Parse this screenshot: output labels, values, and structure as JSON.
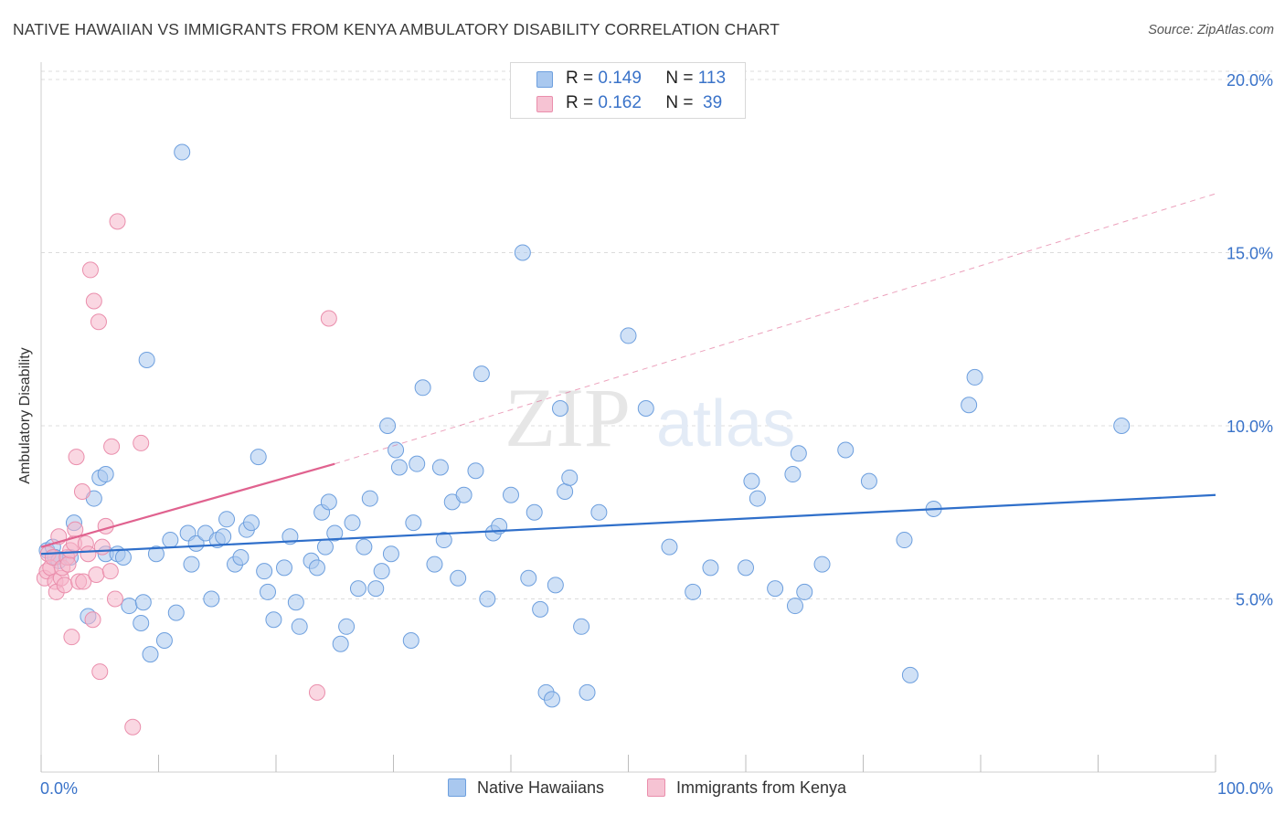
{
  "header": {
    "title": "NATIVE HAWAIIAN VS IMMIGRANTS FROM KENYA AMBULATORY DISABILITY CORRELATION CHART",
    "source": "Source: ZipAtlas.com"
  },
  "watermark": {
    "zip": "ZIP",
    "atlas": "atlas"
  },
  "legend_top": {
    "rows": [
      {
        "r_label": "R =",
        "r_value": "0.149",
        "n_label": "N =",
        "n_value": "113"
      },
      {
        "r_label": "R =",
        "r_value": "0.162",
        "n_label": "N =",
        "n_value": " 39"
      }
    ]
  },
  "legend_bottom": {
    "series1": "Native Hawaiians",
    "series2": "Immigrants from Kenya"
  },
  "colors": {
    "blue_fill": "#a9c8ef",
    "blue_stroke": "#6d9fde",
    "blue_line": "#2f6fca",
    "pink_fill": "#f6b7cb",
    "pink_stroke": "#ea8eac",
    "pink_line": "#e0628f",
    "tick_text": "#3a73c9",
    "grid": "#dcdcdc"
  },
  "chart_data": {
    "type": "scatter",
    "title": "NATIVE HAWAIIAN VS IMMIGRANTS FROM KENYA AMBULATORY DISABILITY CORRELATION CHART",
    "xlabel": "",
    "ylabel": "Ambulatory Disability",
    "xlim": [
      0,
      100
    ],
    "ylim": [
      0,
      20.5
    ],
    "x_tick_labels": [
      "0.0%",
      "100.0%"
    ],
    "y_ticks": [
      5,
      10,
      15,
      20
    ],
    "y_tick_labels": [
      "5.0%",
      "10.0%",
      "15.0%",
      "20.0%"
    ],
    "grid": "horizontal dashed",
    "legend_position": "top-center",
    "series": [
      {
        "name": "Native Hawaiians",
        "r": 0.149,
        "n": 113,
        "trend": {
          "x": [
            0,
            100
          ],
          "y": [
            6.3,
            8.0
          ],
          "style": "solid"
        },
        "points": [
          [
            0.5,
            6.4
          ],
          [
            1.0,
            6.5
          ],
          [
            1.2,
            6.2
          ],
          [
            1.5,
            6.1
          ],
          [
            2.5,
            6.2
          ],
          [
            2.8,
            7.2
          ],
          [
            4.0,
            4.5
          ],
          [
            4.5,
            7.9
          ],
          [
            5.0,
            8.5
          ],
          [
            5.5,
            8.6
          ],
          [
            5.5,
            6.3
          ],
          [
            6.5,
            6.3
          ],
          [
            7.0,
            6.2
          ],
          [
            7.5,
            4.8
          ],
          [
            8.5,
            4.3
          ],
          [
            8.7,
            4.9
          ],
          [
            9.0,
            11.9
          ],
          [
            9.3,
            3.4
          ],
          [
            9.8,
            6.3
          ],
          [
            10.5,
            3.8
          ],
          [
            11.0,
            6.7
          ],
          [
            11.5,
            4.6
          ],
          [
            12.0,
            17.9
          ],
          [
            12.5,
            6.9
          ],
          [
            12.8,
            6.0
          ],
          [
            13.2,
            6.6
          ],
          [
            14.0,
            6.9
          ],
          [
            14.5,
            5.0
          ],
          [
            15.0,
            6.7
          ],
          [
            15.5,
            6.8
          ],
          [
            15.8,
            7.3
          ],
          [
            16.5,
            6.0
          ],
          [
            17.0,
            6.2
          ],
          [
            17.5,
            7.0
          ],
          [
            17.9,
            7.2
          ],
          [
            18.5,
            9.1
          ],
          [
            19.0,
            5.8
          ],
          [
            19.3,
            5.2
          ],
          [
            19.8,
            4.4
          ],
          [
            20.7,
            5.9
          ],
          [
            21.2,
            6.8
          ],
          [
            21.7,
            4.9
          ],
          [
            22.0,
            4.2
          ],
          [
            23.0,
            6.1
          ],
          [
            23.5,
            5.9
          ],
          [
            23.9,
            7.5
          ],
          [
            24.2,
            6.5
          ],
          [
            24.5,
            7.8
          ],
          [
            25.0,
            6.9
          ],
          [
            25.5,
            3.7
          ],
          [
            26.0,
            4.2
          ],
          [
            26.5,
            7.2
          ],
          [
            27.0,
            5.3
          ],
          [
            27.5,
            6.5
          ],
          [
            28.0,
            7.9
          ],
          [
            28.5,
            5.3
          ],
          [
            29.0,
            5.8
          ],
          [
            29.5,
            10.0
          ],
          [
            29.8,
            6.3
          ],
          [
            30.2,
            9.3
          ],
          [
            30.5,
            8.8
          ],
          [
            31.5,
            3.8
          ],
          [
            31.7,
            7.2
          ],
          [
            32.0,
            8.9
          ],
          [
            32.5,
            11.1
          ],
          [
            33.5,
            6.0
          ],
          [
            34.0,
            8.8
          ],
          [
            34.3,
            6.7
          ],
          [
            35.0,
            7.8
          ],
          [
            35.5,
            5.6
          ],
          [
            36.0,
            8.0
          ],
          [
            37.0,
            8.7
          ],
          [
            37.5,
            11.5
          ],
          [
            38.0,
            5.0
          ],
          [
            38.5,
            6.9
          ],
          [
            39.0,
            7.1
          ],
          [
            40.0,
            8.0
          ],
          [
            41.0,
            15.0
          ],
          [
            41.5,
            5.6
          ],
          [
            42.0,
            7.5
          ],
          [
            42.5,
            4.7
          ],
          [
            43.0,
            2.3
          ],
          [
            43.5,
            2.1
          ],
          [
            43.8,
            5.4
          ],
          [
            44.2,
            10.5
          ],
          [
            44.6,
            8.1
          ],
          [
            45.0,
            8.5
          ],
          [
            46.0,
            4.2
          ],
          [
            46.5,
            2.3
          ],
          [
            47.5,
            7.5
          ],
          [
            50.0,
            12.6
          ],
          [
            51.5,
            10.5
          ],
          [
            53.5,
            6.5
          ],
          [
            55.5,
            5.2
          ],
          [
            57.0,
            5.9
          ],
          [
            60.0,
            5.9
          ],
          [
            60.5,
            8.4
          ],
          [
            61.0,
            7.9
          ],
          [
            62.5,
            5.3
          ],
          [
            64.0,
            8.6
          ],
          [
            64.5,
            9.2
          ],
          [
            64.2,
            4.8
          ],
          [
            65.0,
            5.2
          ],
          [
            66.5,
            6.0
          ],
          [
            68.5,
            9.3
          ],
          [
            70.5,
            8.4
          ],
          [
            73.5,
            6.7
          ],
          [
            74.0,
            2.8
          ],
          [
            76.0,
            7.6
          ],
          [
            79.0,
            10.6
          ],
          [
            79.5,
            11.4
          ],
          [
            92.0,
            10.0
          ]
        ]
      },
      {
        "name": "Immigrants from Kenya",
        "r": 0.162,
        "n": 39,
        "trend": {
          "x": [
            0,
            25
          ],
          "y": [
            6.5,
            8.9
          ],
          "style": "solid",
          "extended": {
            "x": [
              25,
              100
            ],
            "y": [
              8.9,
              16.7
            ],
            "style": "dashed"
          }
        },
        "points": [
          [
            0.3,
            5.6
          ],
          [
            0.5,
            5.8
          ],
          [
            0.6,
            6.3
          ],
          [
            0.8,
            5.9
          ],
          [
            1.0,
            6.2
          ],
          [
            1.2,
            5.5
          ],
          [
            1.3,
            5.2
          ],
          [
            1.5,
            6.8
          ],
          [
            1.7,
            5.6
          ],
          [
            1.8,
            5.9
          ],
          [
            2.0,
            5.4
          ],
          [
            2.2,
            6.2
          ],
          [
            2.3,
            6.0
          ],
          [
            2.5,
            6.4
          ],
          [
            2.6,
            3.9
          ],
          [
            2.8,
            6.6
          ],
          [
            2.9,
            7.0
          ],
          [
            3.0,
            9.1
          ],
          [
            3.2,
            5.5
          ],
          [
            3.5,
            8.1
          ],
          [
            3.6,
            5.5
          ],
          [
            3.8,
            6.6
          ],
          [
            4.0,
            6.3
          ],
          [
            4.2,
            14.5
          ],
          [
            4.4,
            4.4
          ],
          [
            4.5,
            13.6
          ],
          [
            4.7,
            5.7
          ],
          [
            4.9,
            13.0
          ],
          [
            5.0,
            2.9
          ],
          [
            5.2,
            6.5
          ],
          [
            5.5,
            7.1
          ],
          [
            5.9,
            5.8
          ],
          [
            6.0,
            9.4
          ],
          [
            6.3,
            5.0
          ],
          [
            6.5,
            15.9
          ],
          [
            7.8,
            1.3
          ],
          [
            8.5,
            9.5
          ],
          [
            23.5,
            2.3
          ],
          [
            24.5,
            13.1
          ]
        ]
      }
    ]
  }
}
